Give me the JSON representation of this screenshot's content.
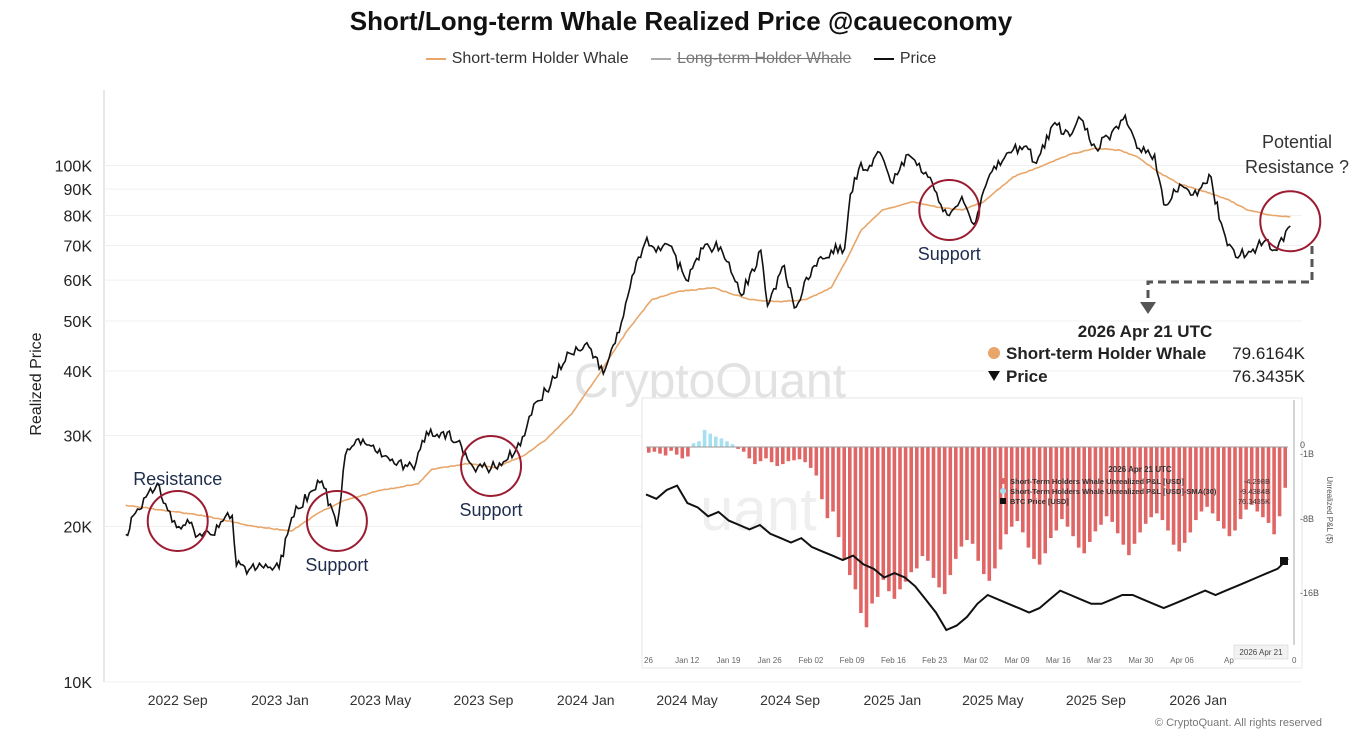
{
  "chart_data": [
    {
      "type": "line",
      "title": "Short/Long-term Whale Realized Price @caueconomy",
      "ylabel": "Realized Price",
      "y_scale": "log",
      "ylim": [
        10000,
        140000
      ],
      "y_ticks": [
        "10K",
        "20K",
        "30K",
        "40K",
        "50K",
        "60K",
        "70K",
        "80K",
        "90K",
        "100K"
      ],
      "y_tick_values": [
        10000,
        20000,
        30000,
        40000,
        50000,
        60000,
        70000,
        80000,
        90000,
        100000
      ],
      "x_ticks": [
        "2022 Sep",
        "2023 Jan",
        "2023 May",
        "2023 Sep",
        "2024 Jan",
        "2024 May",
        "2024 Sep",
        "2025 Jan",
        "2025 May",
        "2025 Sep",
        "2026 Jan"
      ],
      "x_tick_dates": [
        "2022-09-01",
        "2023-01-01",
        "2023-05-01",
        "2023-09-01",
        "2024-01-01",
        "2024-05-01",
        "2024-09-01",
        "2025-01-01",
        "2025-05-01",
        "2025-09-01",
        "2026-01-01"
      ],
      "legend_position": "top-center",
      "series": [
        {
          "name": "Short-term Holder Whale",
          "color": "#e8a66a",
          "points": [
            [
              "2022-07-01",
              22000
            ],
            [
              "2022-08-15",
              21500
            ],
            [
              "2022-10-01",
              21000
            ],
            [
              "2022-12-01",
              20000
            ],
            [
              "2023-01-15",
              19600
            ],
            [
              "2023-02-15",
              21200
            ],
            [
              "2023-03-20",
              22500
            ],
            [
              "2023-05-01",
              23500
            ],
            [
              "2023-06-15",
              24200
            ],
            [
              "2023-07-01",
              25800
            ],
            [
              "2023-08-15",
              26500
            ],
            [
              "2023-09-15",
              26000
            ],
            [
              "2023-10-20",
              27500
            ],
            [
              "2023-11-15",
              29500
            ],
            [
              "2023-12-15",
              33000
            ],
            [
              "2024-01-15",
              39000
            ],
            [
              "2024-02-20",
              48000
            ],
            [
              "2024-03-20",
              55000
            ],
            [
              "2024-04-20",
              57000
            ],
            [
              "2024-06-01",
              58000
            ],
            [
              "2024-07-15",
              55000
            ],
            [
              "2024-08-20",
              54500
            ],
            [
              "2024-09-20",
              55000
            ],
            [
              "2024-10-20",
              58000
            ],
            [
              "2024-11-10",
              67000
            ],
            [
              "2024-11-25",
              75000
            ],
            [
              "2024-12-20",
              82000
            ],
            [
              "2025-01-25",
              85000
            ],
            [
              "2025-02-25",
              83000
            ],
            [
              "2025-03-25",
              82000
            ],
            [
              "2025-04-20",
              85000
            ],
            [
              "2025-05-25",
              95000
            ],
            [
              "2025-06-30",
              100000
            ],
            [
              "2025-07-31",
              105000
            ],
            [
              "2025-08-31",
              108000
            ],
            [
              "2025-09-30",
              107000
            ],
            [
              "2025-10-20",
              104000
            ],
            [
              "2025-11-15",
              97000
            ],
            [
              "2025-12-10",
              92000
            ],
            [
              "2026-01-10",
              89000
            ],
            [
              "2026-02-05",
              86000
            ],
            [
              "2026-03-01",
              82000
            ],
            [
              "2026-03-31",
              80000
            ],
            [
              "2026-04-21",
              79616
            ]
          ]
        },
        {
          "name": "Long-term Holder Whale",
          "color": "#aaaaaa",
          "hidden": true,
          "points": []
        },
        {
          "name": "Price",
          "color": "#111111",
          "points": [
            [
              "2022-07-01",
              19300
            ],
            [
              "2022-07-10",
              21000
            ],
            [
              "2022-07-25",
              22800
            ],
            [
              "2022-08-10",
              24000
            ],
            [
              "2022-08-20",
              21500
            ],
            [
              "2022-09-05",
              19800
            ],
            [
              "2022-09-15",
              20300
            ],
            [
              "2022-09-25",
              19200
            ],
            [
              "2022-10-10",
              19300
            ],
            [
              "2022-10-25",
              20500
            ],
            [
              "2022-11-05",
              21000
            ],
            [
              "2022-11-10",
              16800
            ],
            [
              "2022-11-25",
              16500
            ],
            [
              "2022-12-15",
              16900
            ],
            [
              "2022-12-31",
              16600
            ],
            [
              "2023-01-15",
              20800
            ],
            [
              "2023-02-05",
              23200
            ],
            [
              "2023-02-20",
              24500
            ],
            [
              "2023-03-10",
              20000
            ],
            [
              "2023-03-20",
              27500
            ],
            [
              "2023-04-10",
              29500
            ],
            [
              "2023-04-25",
              28000
            ],
            [
              "2023-05-15",
              27000
            ],
            [
              "2023-06-10",
              25800
            ],
            [
              "2023-06-25",
              30500
            ],
            [
              "2023-07-15",
              30500
            ],
            [
              "2023-08-01",
              29200
            ],
            [
              "2023-08-20",
              26000
            ],
            [
              "2023-09-10",
              25900
            ],
            [
              "2023-09-30",
              27000
            ],
            [
              "2023-10-20",
              30000
            ],
            [
              "2023-10-31",
              34500
            ],
            [
              "2023-11-20",
              37500
            ],
            [
              "2023-12-10",
              43500
            ],
            [
              "2024-01-05",
              44500
            ],
            [
              "2024-01-22",
              39500
            ],
            [
              "2024-02-10",
              47500
            ],
            [
              "2024-02-28",
              62000
            ],
            [
              "2024-03-14",
              72500
            ],
            [
              "2024-03-25",
              68000
            ],
            [
              "2024-04-10",
              70000
            ],
            [
              "2024-04-30",
              60000
            ],
            [
              "2024-05-20",
              69000
            ],
            [
              "2024-06-10",
              69500
            ],
            [
              "2024-06-25",
              61000
            ],
            [
              "2024-07-05",
              56000
            ],
            [
              "2024-07-28",
              68500
            ],
            [
              "2024-08-05",
              53500
            ],
            [
              "2024-08-25",
              64000
            ],
            [
              "2024-09-06",
              53000
            ],
            [
              "2024-09-30",
              64000
            ],
            [
              "2024-10-20",
              68500
            ],
            [
              "2024-11-05",
              69000
            ],
            [
              "2024-11-12",
              88000
            ],
            [
              "2024-11-22",
              98500
            ],
            [
              "2024-12-05",
              100000
            ],
            [
              "2024-12-17",
              106000
            ],
            [
              "2024-12-30",
              93000
            ],
            [
              "2025-01-20",
              105000
            ],
            [
              "2025-02-10",
              97000
            ],
            [
              "2025-02-28",
              84000
            ],
            [
              "2025-03-10",
              80000
            ],
            [
              "2025-03-25",
              87000
            ],
            [
              "2025-04-08",
              77000
            ],
            [
              "2025-04-25",
              94000
            ],
            [
              "2025-05-20",
              106000
            ],
            [
              "2025-06-10",
              109000
            ],
            [
              "2025-06-22",
              101000
            ],
            [
              "2025-07-14",
              121000
            ],
            [
              "2025-08-01",
              114000
            ],
            [
              "2025-08-14",
              123000
            ],
            [
              "2025-09-01",
              108000
            ],
            [
              "2025-09-20",
              116000
            ],
            [
              "2025-10-06",
              125000
            ],
            [
              "2025-10-20",
              108000
            ],
            [
              "2025-11-10",
              105000
            ],
            [
              "2025-11-21",
              84000
            ],
            [
              "2025-12-10",
              92000
            ],
            [
              "2025-12-31",
              87500
            ],
            [
              "2026-01-14",
              96000
            ],
            [
              "2026-02-05",
              70000
            ],
            [
              "2026-02-20",
              67000
            ],
            [
              "2026-03-05",
              68000
            ],
            [
              "2026-03-20",
              71000
            ],
            [
              "2026-04-05",
              68500
            ],
            [
              "2026-04-21",
              76343
            ]
          ]
        }
      ],
      "annotations": [
        {
          "text": "Resistance",
          "date": "2022-09-01",
          "value": 20500,
          "kind": "resistance"
        },
        {
          "text": "Support",
          "date": "2023-03-10",
          "value": 20500,
          "kind": "support"
        },
        {
          "text": "Support",
          "date": "2023-09-10",
          "value": 26200,
          "kind": "support"
        },
        {
          "text": "Support",
          "date": "2025-03-10",
          "value": 82000,
          "kind": "support"
        },
        {
          "text_lines": [
            "Potential",
            "Resistance ?"
          ],
          "date": "2026-04-21",
          "value": 78000,
          "kind": "resistance"
        }
      ],
      "tooltip": {
        "date": "2026 Apr 21 UTC",
        "rows": [
          {
            "label": "Short-term Holder Whale",
            "value": "79.6164K",
            "marker": "dot",
            "color": "#e8a66a"
          },
          {
            "label": "Price",
            "value": "76.3435K",
            "marker": "triangle",
            "color": "#111111"
          }
        ]
      },
      "watermark": "CryptoQuant",
      "footer": "© CryptoQuant. All rights reserved"
    },
    {
      "type": "bar",
      "inset": true,
      "y_ticks_right": [
        "0",
        "-1B",
        "-8B",
        "-16B"
      ],
      "ylabel_right": "Unrealized P&L ($)",
      "x_ticks": [
        "Jan 12",
        "Jan 19",
        "Jan 26",
        "Feb 02",
        "Feb 09",
        "Feb 16",
        "Feb 23",
        "Mar 02",
        "Mar 09",
        "Mar 16",
        "Mar 23",
        "Mar 30",
        "Apr 06"
      ],
      "x_tick_dates": [
        "2026-01-12",
        "2026-01-19",
        "2026-01-26",
        "2026-02-02",
        "2026-02-09",
        "2026-02-16",
        "2026-02-23",
        "2026-03-02",
        "2026-03-09",
        "2026-03-16",
        "2026-03-23",
        "2026-03-30",
        "2026-04-06"
      ],
      "x_range_dates": [
        "2026-01-05",
        "2026-04-24"
      ],
      "x_edge_labels": [
        "26",
        "Ap",
        "0"
      ],
      "date_badge": "2026 Apr 21",
      "tooltip": {
        "date": "2026 Apr 21 UTC",
        "rows": [
          {
            "label": "Short-Term Holders Whale Unrealized P&L [USD]",
            "value": "-4.298B",
            "color": "#e06666"
          },
          {
            "label": "Short-Term Holders Whale Unrealized P&L [USD]-SMA(30)",
            "value": "-9.4384B",
            "color": "#a6dff0"
          },
          {
            "label": "BTC Price [USD]",
            "value": "76.3435K",
            "color": "#111111"
          }
        ]
      },
      "series": [
        {
          "name": "Short-Term Holders Whale Unrealized P&L [USD]",
          "color": "#e06666",
          "values_billion": [
            -0.6,
            -0.5,
            -0.7,
            -0.9,
            -0.4,
            -0.8,
            -1.2,
            -1.0,
            0.4,
            0.6,
            1.8,
            1.4,
            1.1,
            0.9,
            0.6,
            0.3,
            -0.2,
            -0.5,
            -1.2,
            -1.8,
            -1.5,
            -1.2,
            -1.6,
            -2.0,
            -1.8,
            -1.5,
            -1.4,
            -1.3,
            -1.6,
            -2.2,
            -3.0,
            -5.5,
            -7.5,
            -6.8,
            -9.5,
            -11.8,
            -13.5,
            -15.0,
            -17.5,
            -19.0,
            -16.5,
            -15.8,
            -14.0,
            -15.2,
            -16.0,
            -15.0,
            -14.2,
            -13.2,
            -12.8,
            -11.5,
            -12.0,
            -13.8,
            -14.8,
            -15.5,
            -13.5,
            -11.8,
            -10.5,
            -9.8,
            -10.2,
            -12.0,
            -13.4,
            -14.1,
            -12.8,
            -10.8,
            -9.2,
            -8.4,
            -7.8,
            -9.0,
            -10.6,
            -11.8,
            -12.4,
            -11.2,
            -9.6,
            -8.8,
            -7.6,
            -8.4,
            -9.4,
            -10.6,
            -11.2,
            -10.0,
            -8.9,
            -8.2,
            -7.3,
            -7.9,
            -9.1,
            -10.3,
            -11.4,
            -10.2,
            -9.0,
            -8.1,
            -7.4,
            -7.0,
            -7.7,
            -8.8,
            -10.3,
            -11.0,
            -10.1,
            -9.0,
            -7.7,
            -6.8,
            -6.3,
            -7.0,
            -7.8,
            -8.6,
            -9.4,
            -8.8,
            -7.6,
            -6.6,
            -6.1,
            -6.8,
            -7.4,
            -8.0,
            -9.2,
            -7.3,
            -4.298
          ]
        },
        {
          "name": "Short-Term Holders Whale Unrealized P&L [USD]-SMA(30)",
          "color": "#a6dff0",
          "values_billion": []
        },
        {
          "name": "BTC Price [USD]",
          "color": "#111111",
          "values_k": [
            91,
            90,
            92,
            93,
            89,
            88,
            86,
            87,
            85,
            84,
            83,
            84,
            82,
            81,
            80,
            81,
            79,
            78,
            77,
            76,
            77,
            75,
            74,
            72,
            73,
            72,
            70,
            67,
            64,
            60,
            61,
            63,
            66,
            68,
            67,
            66,
            65,
            64,
            65,
            67,
            69,
            68,
            67,
            66,
            66,
            67,
            68,
            68,
            67,
            66,
            65,
            66,
            67,
            68,
            69,
            68,
            69,
            70,
            71,
            72,
            73,
            74,
            76.3
          ]
        }
      ]
    }
  ]
}
